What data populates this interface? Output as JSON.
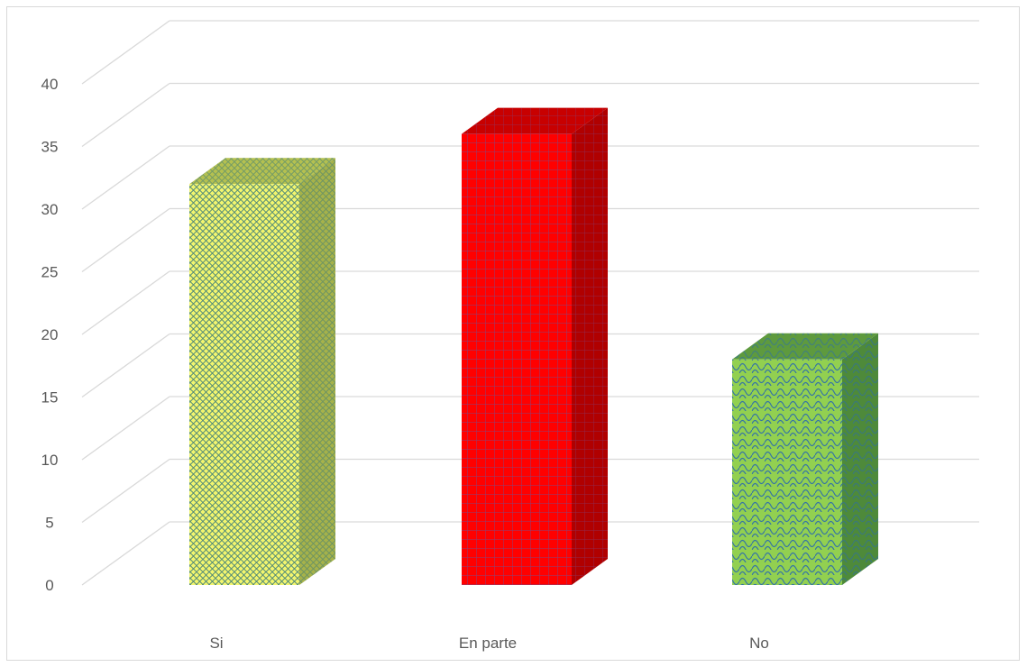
{
  "chart_data": {
    "type": "bar",
    "style": "3d-column",
    "categories": [
      "Si",
      "En parte",
      "No"
    ],
    "values": [
      32,
      36,
      18
    ],
    "ylim": [
      0,
      40
    ],
    "yticks": [
      "0",
      "5",
      "10",
      "15",
      "20",
      "25",
      "30",
      "35",
      "40"
    ],
    "grid": true,
    "legend": "none",
    "title": "",
    "xlabel": "",
    "ylabel": "",
    "bar_colors": [
      {
        "front": "#f2f56e",
        "side": "#a6b24a",
        "top": "#b4c050",
        "pattern": "#3a7a7a"
      },
      {
        "front": "#ff0000",
        "side": "#b00000",
        "top": "#c80000",
        "pattern": "#7a4a8a"
      },
      {
        "front": "#92d050",
        "side": "#4e8a3a",
        "top": "#5e9a3e",
        "pattern": "#2a6ab0"
      }
    ]
  }
}
